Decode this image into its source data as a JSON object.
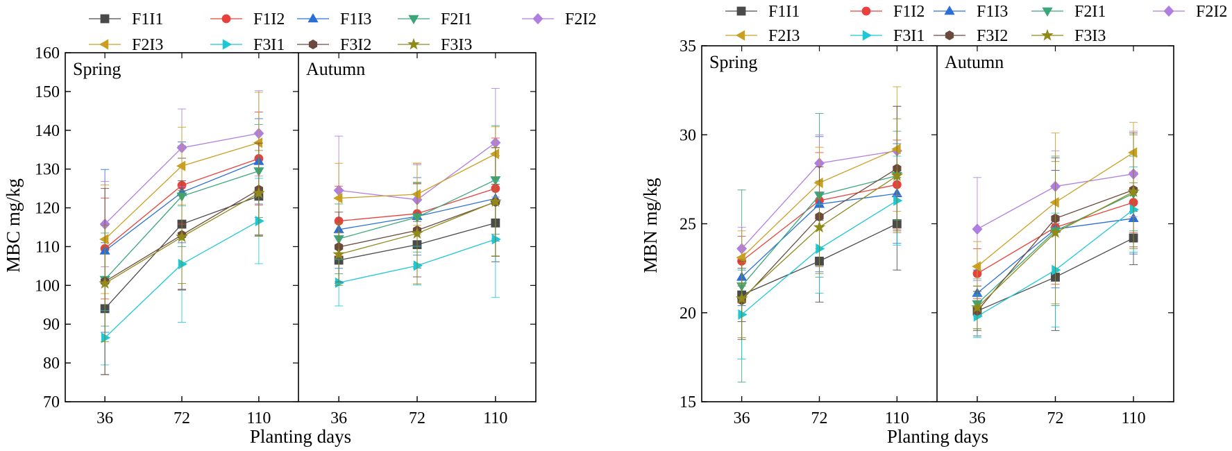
{
  "figure": {
    "description_labels": [
      "MBC",
      "MBN"
    ]
  },
  "colors": {
    "F1I1": "#4a4a4a",
    "F1I2": "#e8413c",
    "F1I3": "#2a6fd6",
    "F2I1": "#3aa67a",
    "F2I2": "#b07ee0",
    "F2I3": "#c9a021",
    "F3I1": "#1cc8d6",
    "F3I2": "#6b4a3e",
    "F3I3": "#8f8a1a"
  },
  "markers": {
    "F1I1": "square",
    "F1I2": "circle",
    "F1I3": "triangle-up",
    "F2I1": "triangle-down",
    "F2I2": "diamond",
    "F2I3": "triangle-left",
    "F3I1": "triangle-right",
    "F3I2": "hexagon",
    "F3I3": "star"
  },
  "chart_data": [
    {
      "type": "line",
      "ylabel": "MBC  mg/kg",
      "xlabel": "Planting days",
      "ylim": [
        70,
        160
      ],
      "yticks": [
        70,
        80,
        90,
        100,
        110,
        120,
        130,
        140,
        150,
        160
      ],
      "categories": [
        "36",
        "72",
        "110"
      ],
      "legend": [
        "F1I1",
        "F1I2",
        "F1I3",
        "F2I1",
        "F2I2",
        "F2I3",
        "F3I1",
        "F3I2",
        "F3I3"
      ],
      "panels": [
        {
          "label": "Spring",
          "series": [
            {
              "name": "F1I1",
              "values": [
                94,
                115.8,
                123
              ],
              "err": [
                17,
                17,
                10
              ]
            },
            {
              "name": "F1I2",
              "values": [
                109.5,
                125.8,
                132.7
              ],
              "err": [
                13,
                10,
                12
              ]
            },
            {
              "name": "F1I3",
              "values": [
                108.9,
                124,
                132
              ],
              "err": [
                21,
                13,
                11
              ]
            },
            {
              "name": "F2I1",
              "values": [
                101.5,
                123,
                129.5
              ],
              "err": [
                12,
                13,
                12
              ]
            },
            {
              "name": "F2I2",
              "values": [
                115.8,
                135.5,
                139.2
              ],
              "err": [
                11,
                10,
                11
              ]
            },
            {
              "name": "F2I3",
              "values": [
                111.9,
                130.8,
                136.8
              ],
              "err": [
                14,
                10,
                13
              ]
            },
            {
              "name": "F3I1",
              "values": [
                86.5,
                105.5,
                116.6
              ],
              "err": [
                7,
                15,
                11
              ]
            },
            {
              "name": "F3I2",
              "values": [
                101,
                113,
                124.7
              ],
              "err": [
                24,
                14,
                12
              ]
            },
            {
              "name": "F3I3",
              "values": [
                100.5,
                112.5,
                123.8
              ],
              "err": [
                15,
                12,
                11
              ]
            }
          ]
        },
        {
          "label": "Autumn",
          "series": [
            {
              "name": "F1I1",
              "values": [
                106.5,
                110.5,
                116.1
              ],
              "err": [
                6,
                6,
                10
              ]
            },
            {
              "name": "F1I2",
              "values": [
                116.6,
                118.5,
                125
              ],
              "err": [
                9,
                13,
                13
              ]
            },
            {
              "name": "F1I3",
              "values": [
                114.4,
                117.8,
                122.4
              ],
              "err": [
                10,
                10,
                11
              ]
            },
            {
              "name": "F2I1",
              "values": [
                112,
                117.6,
                127.2
              ],
              "err": [
                9,
                9,
                14
              ]
            },
            {
              "name": "F2I2",
              "values": [
                124.5,
                122.1,
                136.8
              ],
              "err": [
                14,
                9,
                14
              ]
            },
            {
              "name": "F2I3",
              "values": [
                122.5,
                123.5,
                133.9
              ],
              "err": [
                9,
                8,
                7
              ]
            },
            {
              "name": "F3I1",
              "values": [
                100.7,
                105.1,
                111.9
              ],
              "err": [
                6,
                5,
                15
              ]
            },
            {
              "name": "F3I2",
              "values": [
                109.9,
                114.2,
                121.5
              ],
              "err": [
                9,
                12,
                14
              ]
            },
            {
              "name": "F3I3",
              "values": [
                108,
                113.4,
                121.6
              ],
              "err": [
                8,
                13,
                14
              ]
            }
          ]
        }
      ]
    },
    {
      "type": "line",
      "ylabel": "MBN  mg/kg",
      "xlabel": "Planting days",
      "ylim": [
        15,
        35
      ],
      "yticks": [
        15,
        20,
        25,
        30,
        35
      ],
      "categories": [
        "36",
        "72",
        "110"
      ],
      "legend": [
        "F1I1",
        "F1I2",
        "F1I3",
        "F2I1",
        "F2I2",
        "F2I3",
        "F3I1",
        "F3I2",
        "F3I3"
      ],
      "panels": [
        {
          "label": "Spring",
          "series": [
            {
              "name": "F1I1",
              "values": [
                21,
                22.9,
                25
              ],
              "err": [
                1.5,
                2.3,
                2.6
              ]
            },
            {
              "name": "F1I2",
              "values": [
                22.9,
                26.3,
                27.2
              ],
              "err": [
                1.4,
                2.7,
                2.5
              ]
            },
            {
              "name": "F1I3",
              "values": [
                22,
                26.1,
                26.7
              ],
              "err": [
                1.6,
                3.8,
                2.8
              ]
            },
            {
              "name": "F2I1",
              "values": [
                21.5,
                26.6,
                27.7
              ],
              "err": [
                5.4,
                4.6,
                2.5
              ]
            },
            {
              "name": "F2I2",
              "values": [
                23.6,
                28.4,
                29.1
              ],
              "err": [
                1.2,
                1.6,
                2.5
              ]
            },
            {
              "name": "F2I3",
              "values": [
                23.1,
                27.3,
                29.2
              ],
              "err": [
                1.5,
                2.0,
                3.5
              ]
            },
            {
              "name": "F3I1",
              "values": [
                19.9,
                23.6,
                26.3
              ],
              "err": [
                2.5,
                2.5,
                2.5
              ]
            },
            {
              "name": "F3I2",
              "values": [
                20.7,
                25.4,
                28.1
              ],
              "err": [
                2.2,
                2.8,
                3.5
              ]
            },
            {
              "name": "F3I3",
              "values": [
                20.8,
                24.8,
                27.7
              ],
              "err": [
                2.2,
                2.6,
                3.2
              ]
            }
          ]
        },
        {
          "label": "Autumn",
          "series": [
            {
              "name": "F1I1",
              "values": [
                20.1,
                22,
                24.2
              ],
              "err": [
                1.4,
                3.0,
                1.5
              ]
            },
            {
              "name": "F1I2",
              "values": [
                22.2,
                24.8,
                26.2
              ],
              "err": [
                1.4,
                3.2,
                1.7
              ]
            },
            {
              "name": "F1I3",
              "values": [
                21.1,
                24.7,
                25.3
              ],
              "err": [
                1.3,
                3.3,
                2.0
              ]
            },
            {
              "name": "F2I1",
              "values": [
                20.5,
                24.6,
                26.7
              ],
              "err": [
                1.4,
                4.2,
                2.1
              ]
            },
            {
              "name": "F2I2",
              "values": [
                24.7,
                27.1,
                27.8
              ],
              "err": [
                2.9,
                2.0,
                2.4
              ]
            },
            {
              "name": "F2I3",
              "values": [
                22.6,
                26.2,
                29
              ],
              "err": [
                1.4,
                3.9,
                1.7
              ]
            },
            {
              "name": "F3I1",
              "values": [
                19.8,
                22.4,
                25.8
              ],
              "err": [
                1.2,
                3.2,
                2.4
              ]
            },
            {
              "name": "F3I2",
              "values": [
                20.1,
                25.3,
                26.9
              ],
              "err": [
                1.1,
                3.4,
                3.2
              ]
            },
            {
              "name": "F3I3",
              "values": [
                20.3,
                24.5,
                26.8
              ],
              "err": [
                1.2,
                4.0,
                3.2
              ]
            }
          ]
        }
      ]
    }
  ]
}
